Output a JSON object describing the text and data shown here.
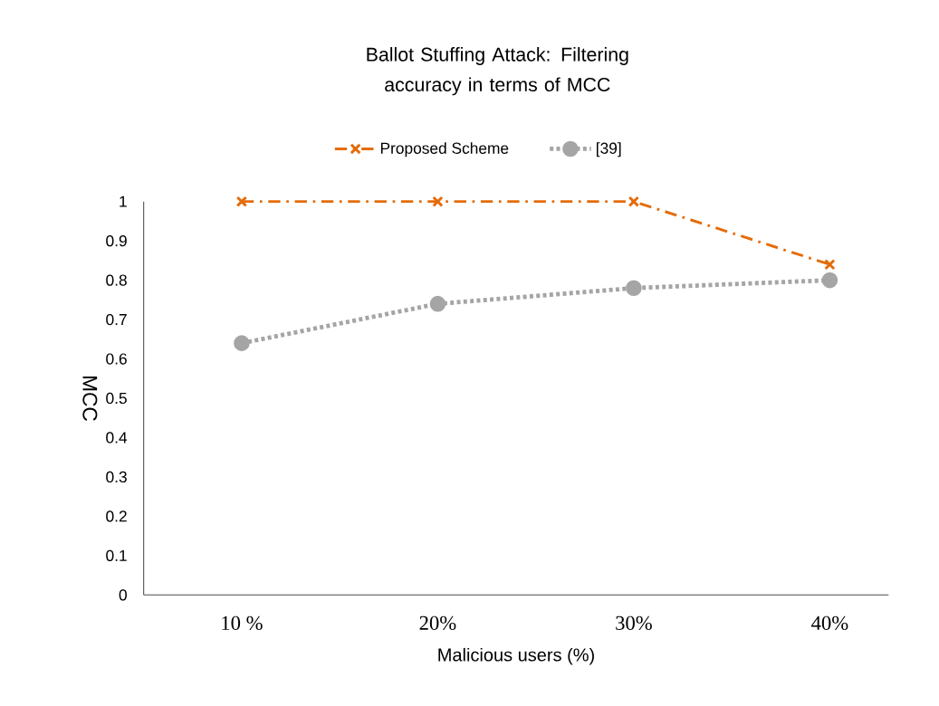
{
  "chart_data": {
    "type": "line",
    "title": "Ballot Stuffing Attack: Filtering accuracy in terms of MCC",
    "xlabel": "Malicious users (%)",
    "ylabel": "MCC",
    "categories": [
      "10 %",
      "20%",
      "30%",
      "40%"
    ],
    "ylim": [
      0,
      1
    ],
    "yticks": [
      0,
      0.1,
      0.2,
      0.3,
      0.4,
      0.5,
      0.6,
      0.7,
      0.8,
      0.9,
      1
    ],
    "legend": "top",
    "series": [
      {
        "name": "Proposed Scheme",
        "color": "#e46c0a",
        "values": [
          1,
          1,
          1,
          0.84
        ],
        "marker": "cross",
        "line_style": "dashed"
      },
      {
        "name": "[39]",
        "color": "#a5a5a5",
        "values": [
          0.64,
          0.74,
          0.78,
          0.8
        ],
        "marker": "circle",
        "line_style": "dotted"
      }
    ]
  }
}
